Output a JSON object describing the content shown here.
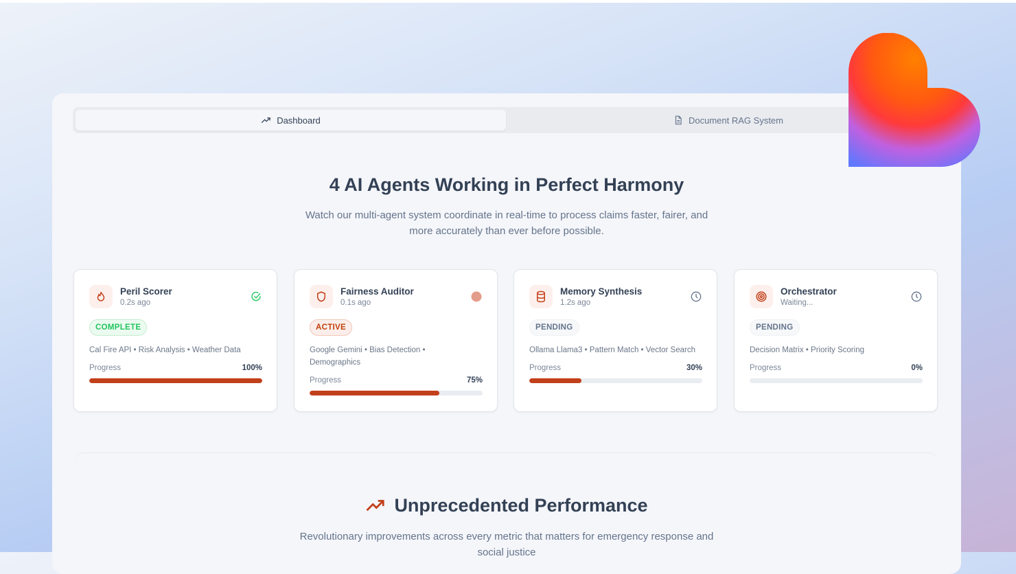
{
  "tabs": [
    {
      "label": "Dashboard",
      "icon": "trending-up-icon",
      "active": true
    },
    {
      "label": "Document RAG System",
      "icon": "document-icon",
      "active": false
    }
  ],
  "hero": {
    "title": "4 AI Agents Working in Perfect Harmony",
    "subtitle": "Watch our multi-agent system coordinate in real-time to process claims faster, fairer, and more accurately than ever before possible."
  },
  "agents": [
    {
      "name": "Peril Scorer",
      "time": "0.2s ago",
      "status": "COMPLETE",
      "icon": "flame-icon",
      "status_icon": "check-circle-icon",
      "tags": "Cal Fire API • Risk Analysis • Weather Data",
      "progress_label": "Progress",
      "progress": 100,
      "progress_text": "100%"
    },
    {
      "name": "Fairness Auditor",
      "time": "0.1s ago",
      "status": "ACTIVE",
      "icon": "shield-icon",
      "status_icon": "active-dot-icon",
      "tags": "Google Gemini • Bias Detection • Demographics",
      "progress_label": "Progress",
      "progress": 75,
      "progress_text": "75%"
    },
    {
      "name": "Memory Synthesis",
      "time": "1.2s ago",
      "status": "PENDING",
      "icon": "database-icon",
      "status_icon": "clock-icon",
      "tags": "Ollama Llama3 • Pattern Match • Vector Search",
      "progress_label": "Progress",
      "progress": 30,
      "progress_text": "30%"
    },
    {
      "name": "Orchestrator",
      "time": "Waiting...",
      "status": "PENDING",
      "icon": "target-icon",
      "status_icon": "clock-icon",
      "tags": "Decision Matrix • Priority Scoring",
      "progress_label": "Progress",
      "progress": 0,
      "progress_text": "0%"
    }
  ],
  "performance": {
    "title": "Unprecedented Performance",
    "subtitle": "Revolutionary improvements across every metric that matters for emergency response and social justice"
  },
  "colors": {
    "accent": "#c2401a",
    "complete": "#22c55e",
    "text": "#334155"
  }
}
